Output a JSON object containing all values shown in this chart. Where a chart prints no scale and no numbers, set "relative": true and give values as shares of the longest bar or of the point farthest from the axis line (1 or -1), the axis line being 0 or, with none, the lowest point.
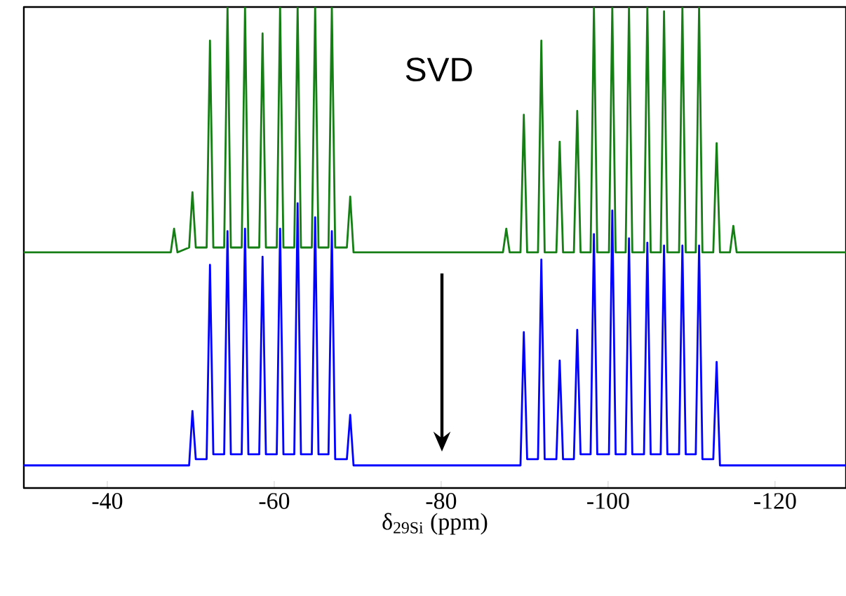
{
  "chart_data": {
    "type": "line",
    "relative": true,
    "xlabel": "δ$_{29Si}$ (ppm)",
    "annotations": [
      "SVD"
    ],
    "xlim": [
      -30,
      -128.5
    ],
    "xticks": [
      -40,
      -60,
      -80,
      -100,
      -120
    ],
    "series": [
      {
        "color": "#157f15",
        "x": [
          -30,
          -47.6,
          -48.0,
          -48.4,
          -49.8,
          -50.2,
          -50.6,
          -51.9,
          -52.3,
          -52.7,
          -54.0,
          -54.4,
          -54.8,
          -56.1,
          -56.5,
          -56.9,
          -58.2,
          -58.6,
          -59.0,
          -60.3,
          -60.7,
          -61.1,
          -62.4,
          -62.8,
          -63.2,
          -64.5,
          -64.9,
          -65.3,
          -66.5,
          -66.9,
          -67.3,
          -68.7,
          -69.1,
          -69.5,
          -87.4,
          -87.8,
          -88.2,
          -89.5,
          -89.9,
          -90.3,
          -91.6,
          -92.0,
          -92.4,
          -93.8,
          -94.2,
          -94.6,
          -95.9,
          -96.3,
          -96.7,
          -97.9,
          -98.3,
          -98.7,
          -100.1,
          -100.5,
          -100.9,
          -102.1,
          -102.5,
          -102.9,
          -104.3,
          -104.7,
          -105.1,
          -106.3,
          -106.7,
          -107.1,
          -108.5,
          -108.9,
          -109.3,
          -110.5,
          -110.9,
          -111.3,
          -112.6,
          -113.0,
          -113.4,
          -114.6,
          -115.0,
          -115.4,
          -128.5
        ],
        "values": [
          0.49,
          0.49,
          0.539,
          0.49,
          0.5,
          0.615,
          0.5,
          0.5,
          0.93,
          0.5,
          0.5,
          1,
          0.5,
          0.5,
          1,
          0.5,
          0.5,
          0.945,
          0.5,
          0.5,
          1,
          0.5,
          0.5,
          1,
          0.5,
          0.5,
          1,
          0.5,
          0.5,
          1,
          0.5,
          0.5,
          0.606,
          0.49,
          0.49,
          0.539,
          0.49,
          0.49,
          0.776,
          0.49,
          0.49,
          0.93,
          0.49,
          0.49,
          0.72,
          0.49,
          0.49,
          0.784,
          0.49,
          0.49,
          1,
          0.49,
          0.49,
          1,
          0.49,
          0.49,
          1,
          0.49,
          0.49,
          1,
          0.49,
          0.49,
          0.991,
          0.49,
          0.49,
          1,
          0.49,
          0.49,
          1,
          0.49,
          0.49,
          0.717,
          0.49,
          0.49,
          0.545,
          0.49,
          0.49
        ]
      },
      {
        "color": "#0000ff",
        "x": [
          -30,
          -49.8,
          -50.2,
          -50.6,
          -51.9,
          -52.3,
          -52.7,
          -54.0,
          -54.4,
          -54.8,
          -56.1,
          -56.5,
          -56.9,
          -58.2,
          -58.6,
          -59.0,
          -60.3,
          -60.7,
          -61.1,
          -62.4,
          -62.8,
          -63.2,
          -64.5,
          -64.9,
          -65.3,
          -66.5,
          -66.9,
          -67.3,
          -68.7,
          -69.1,
          -69.5,
          -89.5,
          -89.9,
          -90.3,
          -91.6,
          -92.0,
          -92.4,
          -93.8,
          -94.2,
          -94.6,
          -95.9,
          -96.3,
          -96.7,
          -97.9,
          -98.3,
          -98.7,
          -100.1,
          -100.5,
          -100.9,
          -102.1,
          -102.5,
          -102.9,
          -104.3,
          -104.7,
          -105.1,
          -106.3,
          -106.7,
          -107.1,
          -108.5,
          -108.9,
          -109.3,
          -110.5,
          -110.9,
          -111.3,
          -112.6,
          -113.0,
          -113.4,
          -128.5
        ],
        "values": [
          0.047,
          0.047,
          0.16,
          0.06,
          0.06,
          0.464,
          0.07,
          0.07,
          0.534,
          0.07,
          0.07,
          0.539,
          0.07,
          0.07,
          0.481,
          0.07,
          0.07,
          0.539,
          0.07,
          0.07,
          0.592,
          0.07,
          0.07,
          0.563,
          0.07,
          0.07,
          0.534,
          0.06,
          0.06,
          0.152,
          0.047,
          0.047,
          0.324,
          0.06,
          0.06,
          0.475,
          0.06,
          0.06,
          0.265,
          0.06,
          0.06,
          0.329,
          0.07,
          0.07,
          0.528,
          0.07,
          0.07,
          0.577,
          0.07,
          0.07,
          0.519,
          0.07,
          0.07,
          0.51,
          0.07,
          0.07,
          0.504,
          0.07,
          0.07,
          0.504,
          0.07,
          0.07,
          0.504,
          0.06,
          0.06,
          0.262,
          0.047,
          0.047
        ]
      }
    ]
  }
}
